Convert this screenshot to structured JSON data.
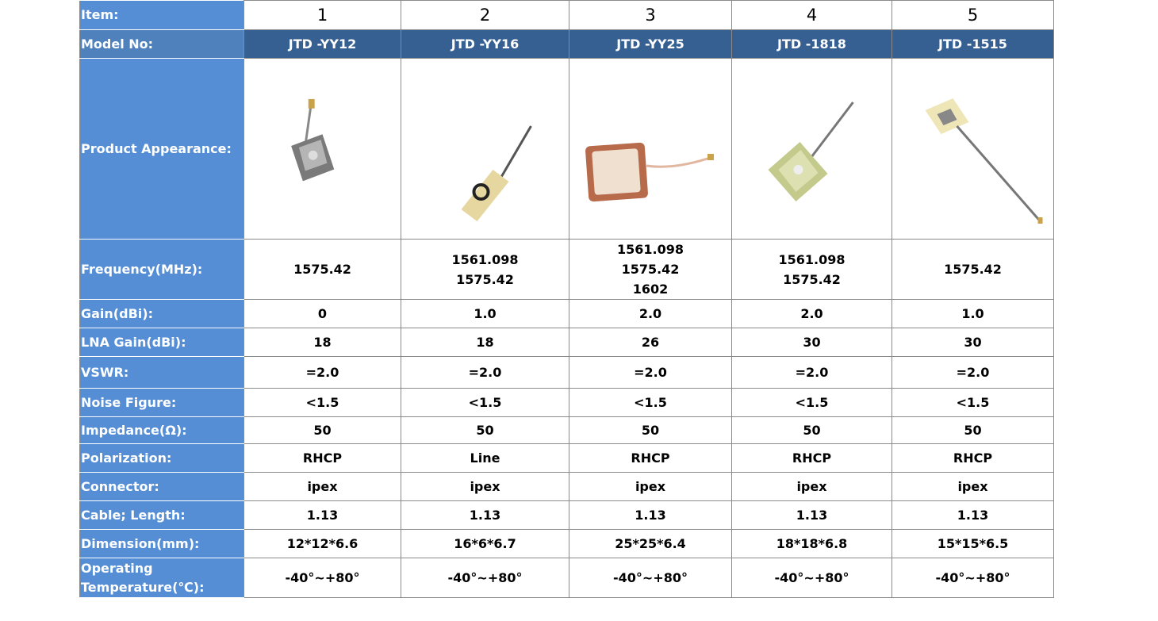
{
  "table": {
    "rows": [
      {
        "label": "Item:",
        "cells": [
          "1",
          "2",
          "3",
          "4",
          "5"
        ]
      },
      {
        "label": "Model No:",
        "cells": [
          "JTD -YY12",
          "JTD -YY16",
          "JTD -YY25",
          "JTD -1818",
          "JTD -1515"
        ]
      },
      {
        "label": "Product Appearance:"
      },
      {
        "label": "Frequency(MHz):",
        "cells": [
          [
            "1575.42"
          ],
          [
            "1561.098",
            "1575.42"
          ],
          [
            "1561.098",
            "1575.42",
            "1602"
          ],
          [
            "1561.098",
            "1575.42"
          ],
          [
            "1575.42"
          ]
        ]
      },
      {
        "label": "Gain(dBi):",
        "cells": [
          "0",
          "1.0",
          "2.0",
          "2.0",
          "1.0"
        ]
      },
      {
        "label": "LNA Gain(dBi):",
        "cells": [
          "18",
          "18",
          "26",
          "30",
          "30"
        ]
      },
      {
        "label": "VSWR:",
        "cells": [
          "=2.0",
          "=2.0",
          "=2.0",
          "=2.0",
          "=2.0"
        ]
      },
      {
        "label": "Noise Figure:",
        "cells": [
          "<1.5",
          "<1.5",
          "<1.5",
          "<1.5",
          "<1.5"
        ]
      },
      {
        "label": "Impedance(Ω):",
        "cells": [
          "50",
          "50",
          "50",
          "50",
          "50"
        ]
      },
      {
        "label": "Polarization:",
        "cells": [
          "RHCP",
          "Line",
          "RHCP",
          "RHCP",
          "RHCP"
        ]
      },
      {
        "label": "Connector:",
        "cells": [
          "ipex",
          "ipex",
          "ipex",
          "ipex",
          "ipex"
        ]
      },
      {
        "label": "Cable; Length:",
        "cells": [
          "1.13",
          "1.13",
          "1.13",
          "1.13",
          "1.13"
        ]
      },
      {
        "label": "Dimension(mm):",
        "cells": [
          "12*12*6.6",
          "16*6*6.7",
          "25*25*6.4",
          "18*18*6.8",
          "15*15*6.5"
        ]
      },
      {
        "label": "Operating Temperature(℃):",
        "cells": [
          "-40°~+80°",
          "-40°~+80°",
          "-40°~+80°",
          "-40°~+80°",
          "-40°~+80°"
        ]
      }
    ]
  }
}
